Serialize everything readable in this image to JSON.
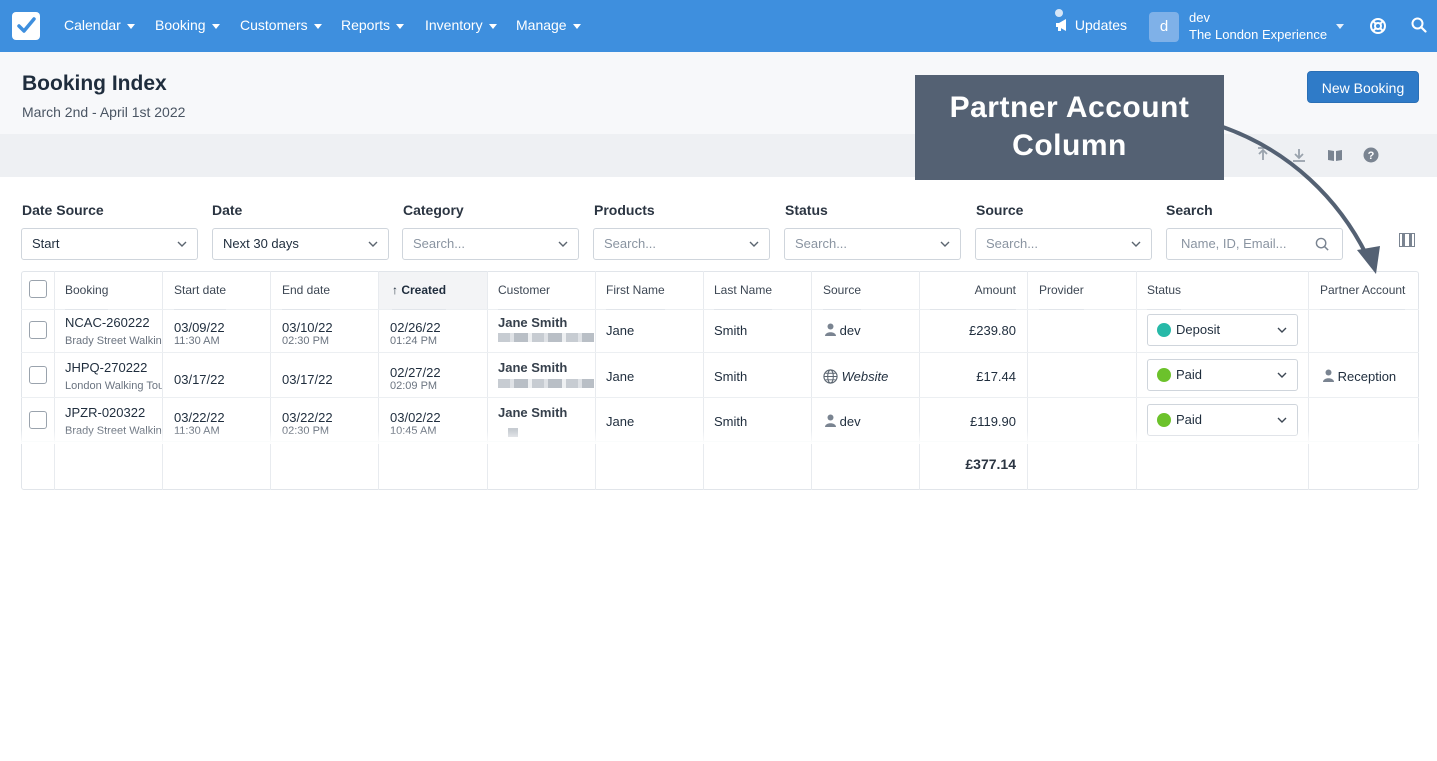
{
  "nav": {
    "items": [
      "Calendar",
      "Booking",
      "Customers",
      "Reports",
      "Inventory",
      "Manage"
    ],
    "updates": "Updates",
    "avatar_letter": "d",
    "user_name": "dev",
    "user_org": "The London Experience"
  },
  "header": {
    "title": "Booking Index",
    "subtitle": "March 2nd - April 1st 2022",
    "new_booking": "New Booking"
  },
  "callout": {
    "line1": "Partner Account",
    "line2": "Column"
  },
  "filters": {
    "date_source": {
      "label": "Date Source",
      "value": "Start"
    },
    "date": {
      "label": "Date",
      "value": "Next 30 days"
    },
    "category": {
      "label": "Category",
      "placeholder": "Search..."
    },
    "products": {
      "label": "Products",
      "placeholder": "Search..."
    },
    "status": {
      "label": "Status",
      "placeholder": "Search..."
    },
    "source": {
      "label": "Source",
      "placeholder": "Search..."
    },
    "search": {
      "label": "Search",
      "placeholder": "Name, ID, Email..."
    }
  },
  "table": {
    "columns": [
      "Booking",
      "Start date",
      "End date",
      "Created",
      "Customer",
      "First Name",
      "Last Name",
      "Source",
      "Amount",
      "Provider",
      "Status",
      "Partner Account"
    ],
    "sorted_indicator": "↑",
    "rows": [
      {
        "booking_id": "NCAC-260222",
        "product": "Brady Street Walking Tour",
        "start_date": "03/09/22",
        "start_time": "11:30 AM",
        "end_date": "03/10/22",
        "end_time": "02:30 PM",
        "created_date": "02/26/22",
        "created_time": "01:24 PM",
        "customer": "Jane Smith",
        "first_name": "Jane",
        "last_name": "Smith",
        "source": "dev",
        "source_icon": "person-icon",
        "amount": "£239.80",
        "provider": "",
        "status": "Deposit",
        "status_color": "#27b9a8",
        "partner_account": ""
      },
      {
        "booking_id": "JHPQ-270222",
        "product": "London Walking Tour",
        "start_date": "03/17/22",
        "start_time": "",
        "end_date": "03/17/22",
        "end_time": "",
        "created_date": "02/27/22",
        "created_time": "02:09 PM",
        "customer": "Jane Smith",
        "first_name": "Jane",
        "last_name": "Smith",
        "source": "Website",
        "source_icon": "globe-icon",
        "amount": "£17.44",
        "provider": "",
        "status": "Paid",
        "status_color": "#6cc22b",
        "partner_account": "Reception"
      },
      {
        "booking_id": "JPZR-020322",
        "product": "Brady Street Walking Tour",
        "start_date": "03/22/22",
        "start_time": "11:30 AM",
        "end_date": "03/22/22",
        "end_time": "02:30 PM",
        "created_date": "03/02/22",
        "created_time": "10:45 AM",
        "customer": "Jane Smith",
        "first_name": "Jane",
        "last_name": "Smith",
        "source": "dev",
        "source_icon": "person-icon",
        "amount": "£119.90",
        "provider": "",
        "status": "Paid",
        "status_color": "#6cc22b",
        "partner_account": ""
      }
    ],
    "total_amount": "£377.14"
  },
  "colors": {
    "nav_bg": "#3e8fde",
    "primary_button": "#2f7bc8",
    "callout_bg": "#546173"
  }
}
